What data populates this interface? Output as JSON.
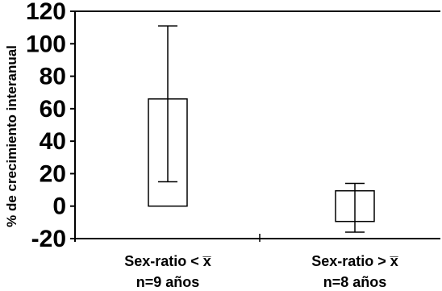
{
  "chart_data": {
    "type": "bar",
    "ylabel": "% de crecimiento interanual",
    "ylim": [
      -20,
      120
    ],
    "yticks": [
      "120",
      "100",
      "80",
      "60",
      "40",
      "20",
      "0",
      "-20"
    ],
    "categories": [
      {
        "line1": "Sex-ratio < x̅",
        "line2": "n=9 años"
      },
      {
        "line1": "Sex-ratio > x̅",
        "line2": "n=8 años"
      }
    ],
    "values": [
      66,
      0
    ],
    "error_low": [
      15,
      -16
    ],
    "error_high": [
      111,
      14
    ],
    "bar_color": "#ffffff",
    "grid": false
  }
}
